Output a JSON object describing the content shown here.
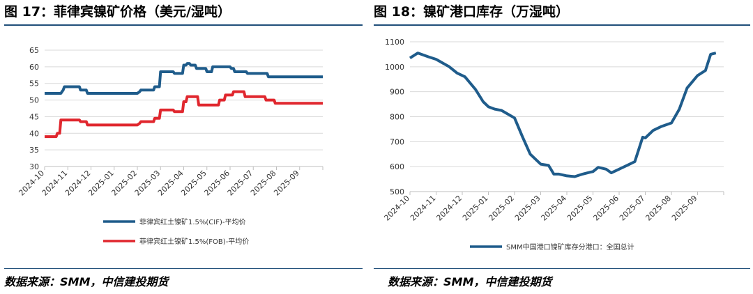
{
  "left": {
    "title": "图 17：菲律宾镍矿价格（美元/湿吨）",
    "source": "数据来源：SMM，中信建投期货"
  },
  "right": {
    "title": "图 18：镍矿港口库存（万湿吨）",
    "source": "数据来源：SMM，中信建投期货"
  },
  "colors": {
    "rule": "#1f4e79",
    "grid": "#d9d9d9",
    "axis": "#bfbfbf"
  },
  "chart_data": [
    {
      "type": "line",
      "title": "",
      "xlabel": "",
      "ylabel": "",
      "ylim": [
        30,
        65
      ],
      "yticks": [
        30,
        35,
        40,
        45,
        50,
        55,
        60,
        65
      ],
      "grid": true,
      "legend": "bottom",
      "xlim": [
        0,
        12
      ],
      "x_tick_labels": [
        "2024-10",
        "2024-11",
        "2024-12",
        "2025-01",
        "2025-02",
        "2025-03",
        "2025-04",
        "2025-05",
        "2025-06",
        "2025-07",
        "2025-08",
        "2025-09"
      ],
      "series": [
        {
          "name": "菲律宾红土镍矿1.5%(CIF)-平均价",
          "color": "#1f5c8b",
          "x": [
            0,
            0.7,
            0.75,
            0.8,
            0.85,
            1.5,
            1.55,
            1.8,
            1.85,
            4.0,
            4.1,
            4.15,
            4.7,
            4.75,
            4.95,
            5.0,
            5.55,
            5.6,
            5.95,
            6.0,
            6.1,
            6.15,
            6.25,
            6.3,
            6.5,
            6.55,
            6.95,
            7.0,
            7.2,
            7.25,
            8.0,
            8.05,
            8.15,
            8.2,
            8.7,
            8.75,
            9.6,
            9.65,
            12.0
          ],
          "y": [
            52,
            52,
            52.5,
            53,
            54,
            54,
            53,
            53,
            52,
            52,
            52.5,
            53,
            53,
            54,
            54,
            58.5,
            58.5,
            58,
            58,
            60.5,
            60.5,
            61,
            61,
            60.5,
            60.5,
            59.5,
            59.5,
            58.5,
            58.5,
            60,
            60,
            59.5,
            59.5,
            58.5,
            58.5,
            58,
            58,
            57,
            57
          ]
        },
        {
          "name": "菲律宾红土镍矿1.5%(FOB)-平均价",
          "color": "#e0272e",
          "x": [
            0,
            0.5,
            0.55,
            0.65,
            0.7,
            1.5,
            1.55,
            1.8,
            1.85,
            4.0,
            4.1,
            4.15,
            4.7,
            4.75,
            4.95,
            5.0,
            5.55,
            5.6,
            5.95,
            6.0,
            6.1,
            6.15,
            6.6,
            6.65,
            7.5,
            7.55,
            7.75,
            7.8,
            8.1,
            8.15,
            8.6,
            8.65,
            9.5,
            9.55,
            9.9,
            9.95,
            12.0
          ],
          "y": [
            39,
            39,
            40,
            40,
            44,
            44,
            43.5,
            43.5,
            42.5,
            42.5,
            43,
            43.5,
            43.5,
            44.5,
            44.5,
            47,
            47,
            46.5,
            46.5,
            49.5,
            49.5,
            51,
            51,
            48.5,
            48.5,
            50,
            50,
            51.5,
            51.5,
            52.5,
            52.5,
            51,
            51,
            50,
            50,
            49,
            49
          ]
        }
      ]
    },
    {
      "type": "line",
      "title": "",
      "xlabel": "",
      "ylabel": "",
      "ylim": [
        500,
        1100
      ],
      "yticks": [
        500,
        600,
        700,
        800,
        900,
        1000,
        1100
      ],
      "grid": true,
      "legend": "bottom",
      "xlim": [
        0,
        12
      ],
      "x_tick_labels": [
        "2024-10",
        "2024-11",
        "2024-12",
        "2025-01",
        "2025-02",
        "2025-03",
        "2025-04",
        "2025-05",
        "2025-06",
        "2025-07",
        "2025-08",
        "2025-09"
      ],
      "series": [
        {
          "name": "SMM中国港口镍矿库存分港口：全国总计",
          "color": "#1f5c8b",
          "x": [
            0,
            0.3,
            0.7,
            1.0,
            1.5,
            1.8,
            2.1,
            2.5,
            2.8,
            3.0,
            3.25,
            3.5,
            4.0,
            4.3,
            4.6,
            4.8,
            5.0,
            5.3,
            5.5,
            5.7,
            6.0,
            6.3,
            6.6,
            6.9,
            7.0,
            7.2,
            7.5,
            7.7,
            8.0,
            8.3,
            8.6,
            8.9,
            9.0,
            9.3,
            9.6,
            10.0,
            10.3,
            10.6,
            11.0,
            11.3,
            11.5,
            11.7
          ],
          "y": [
            1035,
            1055,
            1040,
            1030,
            1000,
            975,
            960,
            910,
            860,
            840,
            830,
            825,
            795,
            720,
            650,
            630,
            610,
            605,
            570,
            570,
            563,
            560,
            570,
            578,
            580,
            597,
            590,
            575,
            590,
            605,
            620,
            718,
            715,
            745,
            760,
            775,
            830,
            915,
            965,
            985,
            1050,
            1055
          ]
        }
      ]
    }
  ]
}
